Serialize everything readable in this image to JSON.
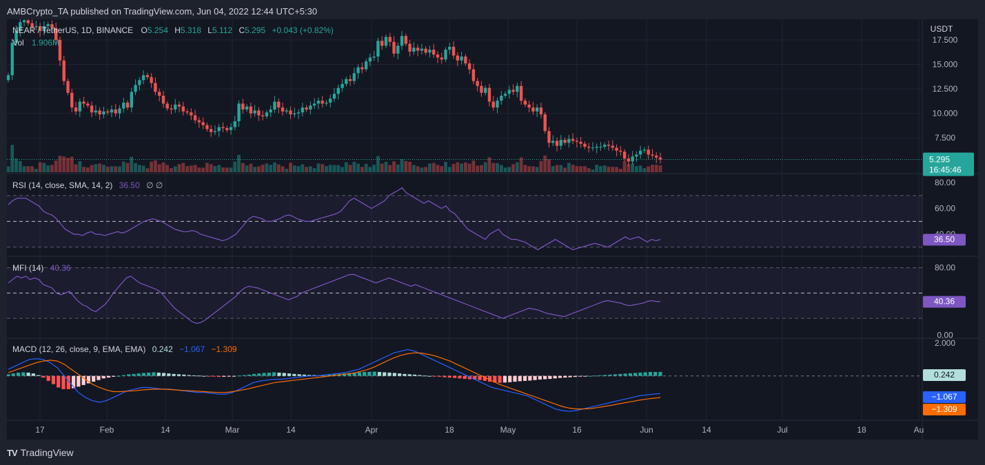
{
  "header": {
    "published": "AMBCrypto_TA published on TradingView.com, Jun 04, 2022 12:44 UTC+5:30"
  },
  "footer": {
    "brand": "TradingView",
    "logo_glyph": "TV"
  },
  "colors": {
    "up": "#26a69a",
    "down": "#ef5350",
    "grid": "#1f2431",
    "bg": "#131722",
    "rsi": "#7e57c2",
    "macd": "#2962ff",
    "signal": "#ff6d00"
  },
  "main_legend": {
    "symbol": "NEAR / TetherUS, 1D, BINANCE",
    "o_label": "O",
    "o": "5.254",
    "h_label": "H",
    "h": "5.318",
    "l_label": "L",
    "l": "5.112",
    "c_label": "C",
    "c": "5.295",
    "change": "+0.043 (+0.82%)",
    "vol_label": "Vol",
    "vol": "1.906M"
  },
  "rsi_legend": {
    "label": "RSI (14, close, SMA, 14, 2)",
    "value": "36.50",
    "extra": "∅ ∅"
  },
  "mfi_legend": {
    "label": "MFI (14)",
    "value": "40.36"
  },
  "macd_legend": {
    "label": "MACD (12, 26, close, 9, EMA, EMA)",
    "hist": "0.242",
    "macd": "−1.067",
    "signal": "−1.309"
  },
  "price_axis": {
    "currency": "USDT",
    "ticks": [
      "17.500",
      "15.000",
      "12.500",
      "10.000",
      "7.500"
    ],
    "last_price": "5.295",
    "countdown": "16:45:46"
  },
  "rsi_axis": {
    "ticks": [
      "80.00",
      "60.00",
      "40.00"
    ],
    "value_tag": "36.50"
  },
  "mfi_axis": {
    "ticks": [
      "80.00",
      "0.00"
    ],
    "value_tag": "40.36"
  },
  "macd_axis": {
    "ticks": [
      "2.000"
    ],
    "hist_tag": "0.242",
    "macd_tag": "−1.067",
    "signal_tag": "−1.309"
  },
  "time_axis": {
    "ticks": [
      "17",
      "Feb",
      "14",
      "Mar",
      "14",
      "Apr",
      "18",
      "May",
      "16",
      "Jun",
      "14",
      "Jul",
      "18",
      "Au"
    ]
  },
  "chart_data": [
    {
      "type": "candlestick",
      "title": "NEAR / TetherUS, 1D, BINANCE",
      "x_range": [
        "2022-01-09",
        "2022-08-01"
      ],
      "ylim": [
        4,
        19.6
      ],
      "ylabel": "USDT",
      "closes": [
        13.9,
        17.2,
        18.4,
        19.3,
        19.5,
        19.2,
        18.8,
        18.9,
        18.4,
        18.9,
        19.1,
        18.7,
        17.5,
        15.4,
        13.3,
        12.1,
        10.6,
        10.2,
        11.2,
        11.0,
        10.8,
        10.1,
        10.3,
        9.9,
        10.2,
        10.1,
        10.4,
        10.0,
        10.5,
        11.1,
        10.6,
        12.2,
        12.9,
        13.4,
        13.9,
        13.7,
        13.1,
        12.2,
        11.8,
        11.0,
        10.5,
        10.4,
        10.9,
        10.7,
        10.2,
        10.1,
        9.8,
        9.3,
        9.1,
        8.8,
        8.4,
        8.1,
        8.2,
        8.6,
        8.5,
        8.3,
        8.6,
        9.2,
        11.0,
        10.4,
        10.7,
        10.0,
        10.3,
        9.8,
        9.7,
        10.1,
        10.4,
        11.2,
        10.6,
        10.2,
        10.3,
        9.9,
        10.0,
        10.1,
        10.6,
        10.4,
        10.8,
        11.0,
        11.3,
        11.0,
        11.1,
        11.5,
        12.0,
        12.6,
        13.0,
        13.5,
        13.3,
        14.1,
        14.7,
        14.5,
        15.3,
        15.7,
        15.8,
        17.4,
        16.9,
        17.8,
        17.3,
        16.1,
        16.9,
        17.9,
        17.1,
        16.3,
        16.7,
        16.4,
        16.6,
        16.2,
        16.5,
        16.0,
        15.7,
        15.5,
        16.5,
        16.8,
        15.9,
        15.4,
        15.8,
        15.1,
        14.5,
        13.3,
        12.8,
        12.1,
        12.6,
        11.2,
        10.6,
        11.3,
        11.8,
        12.0,
        12.4,
        12.2,
        12.8,
        11.3,
        10.9,
        10.6,
        10.2,
        10.6,
        9.9,
        8.2,
        7.0,
        7.2,
        6.7,
        7.3,
        7.0,
        7.4,
        7.2,
        7.1,
        6.9,
        6.6,
        6.5,
        6.5,
        6.6,
        6.6,
        6.8,
        6.7,
        6.5,
        6.2,
        6.1,
        5.4,
        5.1,
        5.6,
        5.8,
        6.2,
        6.3,
        5.8,
        5.7,
        5.5,
        5.3
      ]
    },
    {
      "type": "bar",
      "name": "Vol",
      "value_label": "1.906M"
    },
    {
      "type": "line",
      "name": "RSI (14, close, SMA, 14, 2)",
      "ylim": [
        24,
        86
      ],
      "bands": [
        30,
        50,
        70
      ],
      "values": [
        63,
        66,
        68,
        68,
        68,
        66,
        64,
        62,
        58,
        56,
        55,
        52,
        48,
        44,
        42,
        40,
        40,
        39,
        41,
        42,
        40,
        40,
        39,
        40,
        41,
        42,
        41,
        42,
        44,
        46,
        48,
        50,
        51,
        52,
        51,
        50,
        48,
        46,
        44,
        43,
        42,
        42,
        43,
        42,
        40,
        39,
        38,
        37,
        36,
        35,
        36,
        38,
        40,
        44,
        48,
        52,
        54,
        53,
        52,
        50,
        50,
        51,
        52,
        54,
        55,
        54,
        52,
        51,
        50,
        50,
        51,
        52,
        53,
        54,
        55,
        56,
        58,
        62,
        66,
        68,
        66,
        64,
        62,
        60,
        62,
        64,
        66,
        70,
        72,
        74,
        76,
        72,
        70,
        68,
        66,
        64,
        66,
        64,
        62,
        60,
        62,
        58,
        56,
        52,
        48,
        44,
        42,
        40,
        38,
        36,
        40,
        42,
        44,
        40,
        38,
        36,
        36,
        35,
        34,
        32,
        30,
        28,
        30,
        32,
        34,
        36,
        34,
        32,
        30,
        28,
        29,
        30,
        31,
        32,
        33,
        32,
        31,
        30,
        32,
        34,
        36,
        38,
        36,
        37,
        38,
        36,
        34,
        36,
        35,
        36
      ]
    },
    {
      "type": "line",
      "name": "MFI (14)",
      "ylim": [
        -2,
        92
      ],
      "bands": [
        20,
        50,
        80
      ],
      "values": [
        62,
        66,
        70,
        68,
        70,
        66,
        68,
        66,
        60,
        58,
        56,
        50,
        48,
        50,
        52,
        46,
        40,
        36,
        34,
        30,
        28,
        32,
        36,
        42,
        50,
        56,
        62,
        68,
        70,
        66,
        62,
        60,
        58,
        56,
        54,
        50,
        44,
        38,
        32,
        28,
        24,
        20,
        16,
        14,
        15,
        18,
        22,
        26,
        30,
        34,
        38,
        42,
        46,
        52,
        56,
        58,
        57,
        56,
        54,
        52,
        50,
        48,
        46,
        44,
        42,
        44,
        46,
        50,
        52,
        54,
        56,
        58,
        60,
        62,
        64,
        66,
        68,
        70,
        72,
        72,
        70,
        68,
        66,
        64,
        62,
        64,
        66,
        68,
        66,
        64,
        62,
        60,
        58,
        60,
        58,
        56,
        54,
        52,
        50,
        48,
        46,
        44,
        42,
        40,
        38,
        36,
        34,
        32,
        30,
        28,
        26,
        24,
        22,
        20,
        22,
        24,
        26,
        28,
        30,
        32,
        31,
        30,
        28,
        26,
        25,
        24,
        23,
        22,
        24,
        26,
        28,
        30,
        32,
        34,
        36,
        38,
        40,
        41,
        40,
        39,
        38,
        36,
        35,
        36,
        37,
        38,
        40,
        41,
        40,
        40
      ]
    },
    {
      "type": "bar",
      "name": "MACD histogram",
      "ylim": [
        -2.6,
        2.2
      ],
      "values": [
        0.1,
        0.15,
        0.2,
        0.22,
        0.2,
        0.15,
        0.05,
        -0.1,
        -0.3,
        -0.5,
        -0.7,
        -0.8,
        -0.8,
        -0.75,
        -0.65,
        -0.55,
        -0.45,
        -0.35,
        -0.25,
        -0.15,
        -0.1,
        -0.05,
        0.0,
        0.05,
        0.1,
        0.12,
        0.15,
        0.18,
        0.2,
        0.22,
        0.2,
        0.18,
        0.15,
        0.12,
        0.1,
        0.08,
        0.05,
        0.03,
        0.02,
        0.0,
        -0.02,
        -0.04,
        -0.06,
        -0.05,
        -0.03,
        -0.01,
        0.02,
        0.05,
        0.08,
        0.12,
        0.15,
        0.18,
        0.2,
        0.22,
        0.2,
        0.18,
        0.15,
        0.12,
        0.1,
        0.08,
        0.06,
        0.05,
        0.04,
        0.06,
        0.08,
        0.1,
        0.12,
        0.15,
        0.18,
        0.2,
        0.22,
        0.24,
        0.25,
        0.26,
        0.24,
        0.22,
        0.2,
        0.18,
        0.15,
        0.12,
        0.1,
        0.08,
        0.05,
        0.02,
        0.0,
        -0.02,
        -0.05,
        -0.08,
        -0.1,
        -0.12,
        -0.15,
        -0.18,
        -0.2,
        -0.22,
        -0.25,
        -0.3,
        -0.35,
        -0.4,
        -0.42,
        -0.4,
        -0.38,
        -0.35,
        -0.32,
        -0.3,
        -0.28,
        -0.25,
        -0.22,
        -0.2,
        -0.18,
        -0.15,
        -0.12,
        -0.1,
        -0.08,
        -0.06,
        -0.04,
        -0.02,
        0.0,
        0.02,
        0.04,
        0.06,
        0.08,
        0.1,
        0.12,
        0.14,
        0.16,
        0.18,
        0.2,
        0.22,
        0.24,
        0.24,
        0.242
      ]
    },
    {
      "type": "line",
      "name": "MACD",
      "ylim": [
        -2.6,
        2.2
      ],
      "values": [
        0.4,
        0.6,
        0.8,
        1.0,
        1.05,
        1.0,
        0.8,
        0.5,
        0.0,
        -0.5,
        -1.0,
        -1.3,
        -1.5,
        -1.6,
        -1.5,
        -1.3,
        -1.1,
        -0.9,
        -0.8,
        -0.7,
        -0.7,
        -0.75,
        -0.8,
        -0.8,
        -0.85,
        -0.9,
        -0.95,
        -1.0,
        -1.0,
        -1.05,
        -1.1,
        -1.1,
        -1.0,
        -0.8,
        -0.6,
        -0.4,
        -0.3,
        -0.25,
        -0.2,
        -0.2,
        -0.15,
        -0.1,
        -0.05,
        0.0,
        0.0,
        0.05,
        0.1,
        0.15,
        0.2,
        0.3,
        0.4,
        0.6,
        0.8,
        1.0,
        1.2,
        1.4,
        1.5,
        1.6,
        1.5,
        1.3,
        1.1,
        0.9,
        0.7,
        0.5,
        0.3,
        0.1,
        -0.1,
        -0.3,
        -0.5,
        -0.7,
        -0.8,
        -0.9,
        -1.0,
        -1.1,
        -1.2,
        -1.4,
        -1.6,
        -1.8,
        -2.0,
        -2.1,
        -2.15,
        -2.1,
        -2.0,
        -1.9,
        -1.8,
        -1.7,
        -1.6,
        -1.5,
        -1.4,
        -1.3,
        -1.2,
        -1.15,
        -1.1,
        -1.067
      ]
    },
    {
      "type": "line",
      "name": "Signal",
      "ylim": [
        -2.6,
        2.2
      ],
      "values": [
        0.2,
        0.35,
        0.5,
        0.65,
        0.8,
        0.9,
        0.95,
        0.9,
        0.7,
        0.4,
        0.1,
        -0.2,
        -0.5,
        -0.7,
        -0.85,
        -0.95,
        -0.95,
        -0.92,
        -0.9,
        -0.85,
        -0.82,
        -0.8,
        -0.8,
        -0.82,
        -0.85,
        -0.88,
        -0.9,
        -0.92,
        -0.95,
        -0.98,
        -1.0,
        -1.0,
        -0.95,
        -0.88,
        -0.8,
        -0.7,
        -0.6,
        -0.5,
        -0.4,
        -0.35,
        -0.3,
        -0.25,
        -0.2,
        -0.15,
        -0.1,
        -0.05,
        0.0,
        0.05,
        0.1,
        0.15,
        0.25,
        0.35,
        0.5,
        0.7,
        0.9,
        1.1,
        1.25,
        1.35,
        1.4,
        1.38,
        1.3,
        1.2,
        1.05,
        0.9,
        0.7,
        0.5,
        0.3,
        0.1,
        -0.1,
        -0.3,
        -0.5,
        -0.65,
        -0.8,
        -0.95,
        -1.1,
        -1.25,
        -1.4,
        -1.55,
        -1.7,
        -1.85,
        -1.95,
        -2.0,
        -2.0,
        -1.98,
        -1.92,
        -1.85,
        -1.78,
        -1.7,
        -1.62,
        -1.55,
        -1.47,
        -1.4,
        -1.35,
        -1.309
      ]
    }
  ]
}
